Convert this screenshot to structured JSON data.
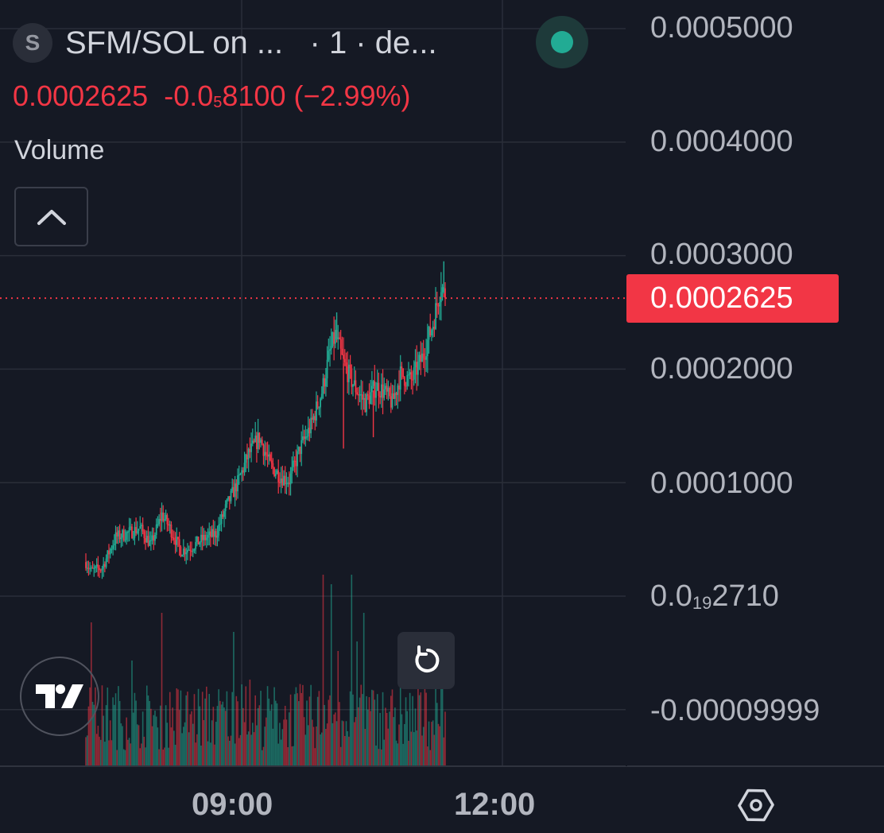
{
  "legend": {
    "symbol_initial": "S",
    "title": "SFM/SOL on ...",
    "interval_text": "· 1 · de...",
    "price": "0.0002625",
    "change_prefix": "-0.0",
    "change_sub": "5",
    "change_suffix": "8100 (−2.99%)",
    "volume_label": "Volume",
    "status_color": "#22ab94"
  },
  "colors": {
    "background": "#151924",
    "up": "#22ab94",
    "down": "#f23645",
    "grid": "#2a2e39",
    "last_price_badge": "#f23645"
  },
  "chart_data": {
    "type": "candlestick",
    "pair": "SFM/SOL",
    "y_ticks": [
      {
        "text": "0.0005000"
      },
      {
        "text": "0.0004000"
      },
      {
        "text": "0.0003000"
      },
      {
        "text": "0.0002000"
      },
      {
        "text": "0.0001000"
      },
      {
        "text_prefix": "0.0",
        "text_sub": "19",
        "text_suffix": "2710"
      },
      {
        "text": "-0.00009999"
      }
    ],
    "x_ticks": [
      "09:00",
      "12:00"
    ],
    "last_price": "0.0002625",
    "last_price_value": 0.0002625,
    "ylim": [
      -0.0001,
      0.0005
    ],
    "close_path": [
      [
        0,
        3e-05
      ],
      [
        4,
        2.2e-05
      ],
      [
        12,
        2.5e-05
      ],
      [
        22,
        5.2e-05
      ],
      [
        30,
        5.5e-05
      ],
      [
        40,
        6e-05
      ],
      [
        48,
        4.5e-05
      ],
      [
        56,
        7.2e-05
      ],
      [
        62,
        6e-05
      ],
      [
        70,
        4e-05
      ],
      [
        76,
        4.2e-05
      ],
      [
        86,
        5e-05
      ],
      [
        96,
        5.5e-05
      ],
      [
        104,
        8e-05
      ],
      [
        112,
        0.0001
      ],
      [
        120,
        0.000125
      ],
      [
        128,
        0.00014
      ],
      [
        136,
        0.000115
      ],
      [
        144,
        0.000105
      ],
      [
        150,
        0.000102
      ],
      [
        158,
        0.00013
      ],
      [
        166,
        0.00015
      ],
      [
        174,
        0.00018
      ],
      [
        180,
        0.000215
      ],
      [
        184,
        0.00023
      ],
      [
        190,
        0.000205
      ],
      [
        198,
        0.000185
      ],
      [
        206,
        0.00017
      ],
      [
        214,
        0.000185
      ],
      [
        220,
        0.00018
      ],
      [
        226,
        0.00017
      ],
      [
        232,
        0.000195
      ],
      [
        240,
        0.00019
      ],
      [
        248,
        0.00021
      ],
      [
        256,
        0.00024
      ],
      [
        262,
        0.000275
      ],
      [
        265,
        0.0002625
      ]
    ],
    "volume_spikes": [
      {
        "bar": 4,
        "ratio": 0.75
      },
      {
        "bar": 34,
        "ratio": 0.55
      },
      {
        "bar": 56,
        "ratio": 0.8
      },
      {
        "bar": 109,
        "ratio": 0.7
      },
      {
        "bar": 121,
        "ratio": 0.45
      },
      {
        "bar": 175,
        "ratio": 1.0
      },
      {
        "bar": 181,
        "ratio": 0.95
      },
      {
        "bar": 186,
        "ratio": 0.6
      },
      {
        "bar": 196,
        "ratio": 1.0
      },
      {
        "bar": 200,
        "ratio": 0.65
      },
      {
        "bar": 205,
        "ratio": 0.8
      },
      {
        "bar": 232,
        "ratio": 0.5
      },
      {
        "bar": 262,
        "ratio": 0.65
      }
    ]
  }
}
